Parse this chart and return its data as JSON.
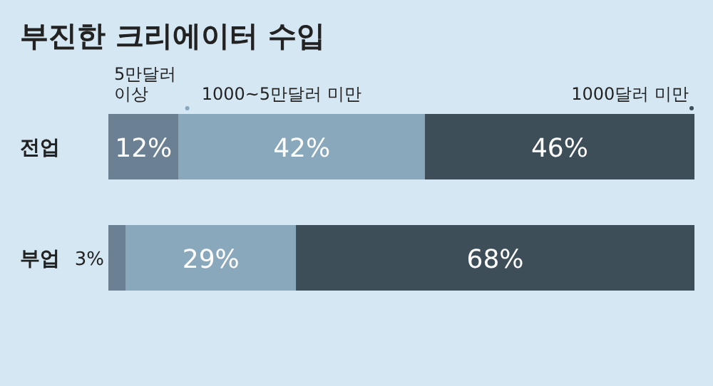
{
  "chart_data": {
    "type": "bar",
    "orientation": "horizontal",
    "stacked": true,
    "title": "부진한 크리에이터 수입",
    "categories": [
      "전업",
      "부업"
    ],
    "xlim": [
      0,
      100
    ],
    "legend": "top",
    "series": [
      {
        "name": "5만달러 이상",
        "color": "#6b8193",
        "values": [
          12,
          3
        ],
        "value_labels": [
          "12%",
          "3%"
        ]
      },
      {
        "name": "1000~5만달러 미만",
        "color": "#8aa8bc",
        "values": [
          42,
          29
        ],
        "value_labels": [
          "42%",
          "29%"
        ]
      },
      {
        "name": "1000달러 미만",
        "color": "#3e4e59",
        "values": [
          46,
          68
        ],
        "value_labels": [
          "46%",
          "68%"
        ]
      }
    ]
  }
}
